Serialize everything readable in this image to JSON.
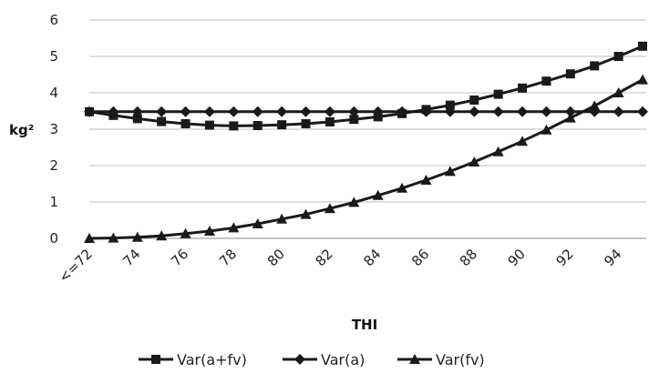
{
  "chart_data": {
    "type": "line",
    "xlabel": "THI",
    "ylabel": "kg²",
    "ylim": [
      0,
      6
    ],
    "yticks": [
      "0",
      "1",
      "2",
      "3",
      "4",
      "5",
      "6"
    ],
    "categories": [
      "<=72",
      "73",
      "74",
      "75",
      "76",
      "77",
      "78",
      "79",
      "80",
      "81",
      "82",
      "83",
      "84",
      "85",
      "86",
      "87",
      "88",
      "89",
      "90",
      "91",
      "92",
      "93",
      "94",
      "95"
    ],
    "x_tick_labels": [
      "<=72",
      "74",
      "76",
      "78",
      "80",
      "82",
      "84",
      "86",
      "88",
      "90",
      "92",
      "94"
    ],
    "grid": true,
    "legend_position": "bottom",
    "series": [
      {
        "name": "Var(a+fv)",
        "marker": "square",
        "color": "#1a1a1a",
        "values": [
          3.48,
          3.38,
          3.29,
          3.21,
          3.15,
          3.11,
          3.09,
          3.1,
          3.12,
          3.15,
          3.2,
          3.27,
          3.34,
          3.43,
          3.54,
          3.66,
          3.8,
          3.96,
          4.13,
          4.32,
          4.52,
          4.74,
          5.0,
          5.28
        ]
      },
      {
        "name": "Var(a)",
        "marker": "diamond",
        "color": "#1a1a1a",
        "values": [
          3.48,
          3.48,
          3.48,
          3.48,
          3.48,
          3.48,
          3.48,
          3.48,
          3.48,
          3.48,
          3.48,
          3.48,
          3.48,
          3.48,
          3.48,
          3.48,
          3.48,
          3.48,
          3.48,
          3.48,
          3.48,
          3.48,
          3.48,
          3.48
        ]
      },
      {
        "name": "Var(fv)",
        "marker": "triangle",
        "color": "#1a1a1a",
        "values": [
          0.0,
          0.01,
          0.03,
          0.07,
          0.13,
          0.2,
          0.29,
          0.4,
          0.53,
          0.66,
          0.82,
          0.99,
          1.18,
          1.38,
          1.6,
          1.84,
          2.1,
          2.38,
          2.67,
          2.98,
          3.31,
          3.64,
          4.0,
          4.36
        ]
      }
    ]
  }
}
